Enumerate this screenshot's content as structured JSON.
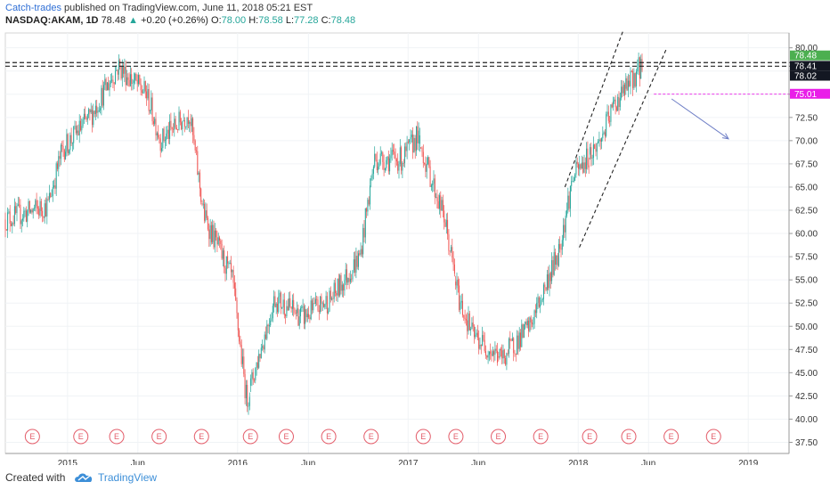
{
  "header": {
    "author": "Catch-trades",
    "published": "published on TradingView.com, June 11, 2018 05:21 EST",
    "symbol": "NASDAQ:AKAM, 1D",
    "last": "78.48",
    "change_arrow": "▲",
    "change": "+0.20 (+0.26%)",
    "o_label": "O:",
    "o_value": "78.00",
    "h_label": "H:",
    "h_value": "78.58",
    "l_label": "L:",
    "l_value": "77.28",
    "c_label": "C:",
    "c_value": "78.48"
  },
  "footer": {
    "created_with": "Created with",
    "brand": "TradingView",
    "logo_icon": "tradingview-cloud-icon"
  },
  "colors": {
    "up": "#26a69a",
    "down": "#ef5350",
    "last_price_label": "#4caf50",
    "target_label": "#e91ee8",
    "arrow": "#6f7fc6",
    "earnings": "#e35d6a"
  },
  "chart_data": {
    "type": "candlestick",
    "symbol": "NASDAQ:AKAM",
    "interval": "1D",
    "y_ticks": [
      "80.00",
      "77.50",
      "75.00",
      "72.50",
      "70.00",
      "67.50",
      "65.00",
      "62.50",
      "60.00",
      "57.50",
      "55.00",
      "52.50",
      "50.00",
      "47.50",
      "45.00",
      "42.50",
      "40.00",
      "37.50"
    ],
    "ylim": [
      36.3,
      81.6
    ],
    "x_ticks": [
      "2015",
      "Jun",
      "2016",
      "Jun",
      "2017",
      "Jun",
      "2018",
      "Jun",
      "2019"
    ],
    "price_labels": [
      {
        "value": "78.48",
        "role": "last-price"
      },
      {
        "value": "78.41",
        "role": "level"
      },
      {
        "value": "78.02",
        "role": "level"
      },
      {
        "value": "75.01",
        "role": "target"
      }
    ],
    "earnings_marker": "E",
    "earnings_count": 17,
    "approx_closes": [
      {
        "date": "2014-09",
        "close": 61.5
      },
      {
        "date": "2014-12",
        "close": 63.0
      },
      {
        "date": "2015-01",
        "close": 69.0
      },
      {
        "date": "2015-03",
        "close": 72.5
      },
      {
        "date": "2015-05",
        "close": 78.0
      },
      {
        "date": "2015-07",
        "close": 75.0
      },
      {
        "date": "2015-08",
        "close": 70.0
      },
      {
        "date": "2015-10",
        "close": 73.0
      },
      {
        "date": "2015-11",
        "close": 62.0
      },
      {
        "date": "2016-01",
        "close": 55.0
      },
      {
        "date": "2016-02",
        "close": 42.0
      },
      {
        "date": "2016-04",
        "close": 53.0
      },
      {
        "date": "2016-06",
        "close": 51.0
      },
      {
        "date": "2016-08",
        "close": 53.0
      },
      {
        "date": "2016-10",
        "close": 57.5
      },
      {
        "date": "2016-11",
        "close": 68.0
      },
      {
        "date": "2017-01",
        "close": 68.0
      },
      {
        "date": "2017-02",
        "close": 70.5
      },
      {
        "date": "2017-04",
        "close": 61.5
      },
      {
        "date": "2017-05",
        "close": 53.0
      },
      {
        "date": "2017-06",
        "close": 49.0
      },
      {
        "date": "2017-08",
        "close": 46.5
      },
      {
        "date": "2017-10",
        "close": 50.0
      },
      {
        "date": "2017-12",
        "close": 58.0
      },
      {
        "date": "2018-01",
        "close": 66.0
      },
      {
        "date": "2018-03",
        "close": 70.0
      },
      {
        "date": "2018-04",
        "close": 74.0
      },
      {
        "date": "2018-05",
        "close": 76.0
      },
      {
        "date": "2018-06",
        "close": 78.48
      }
    ],
    "drawings": [
      {
        "type": "horizontal-line",
        "value": 78.41,
        "style": "dashed"
      },
      {
        "type": "horizontal-line",
        "value": 78.02,
        "style": "dashed"
      },
      {
        "type": "horizontal-line",
        "value": 75.01,
        "style": "dashed",
        "color": "#e91ee8"
      },
      {
        "type": "trend-channel",
        "style": "dashed",
        "from": "2017-12",
        "to": "2018-06"
      },
      {
        "type": "arrow",
        "direction": "down",
        "from": {
          "date": "2018-08",
          "value": 74.5
        },
        "to": {
          "date": "2018-12",
          "value": 70.2
        }
      }
    ]
  }
}
